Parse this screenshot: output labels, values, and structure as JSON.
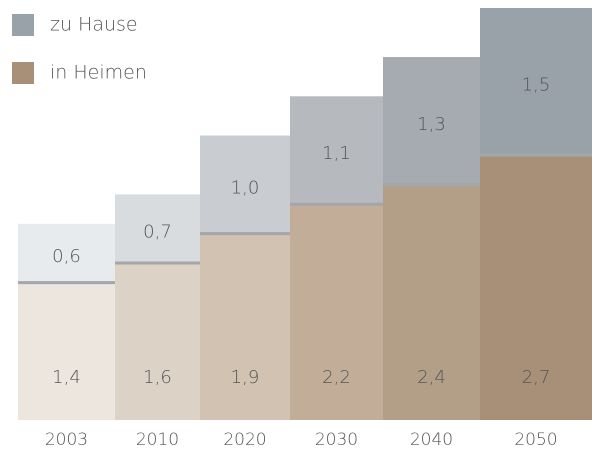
{
  "chart_data": {
    "type": "bar",
    "stacked": true,
    "categories": [
      "2003",
      "2010",
      "2020",
      "2030",
      "2040",
      "2050"
    ],
    "series": [
      {
        "name": "in Heimen",
        "color": "#a88f78",
        "colors": [
          "#ede6de",
          "#ddd2c6",
          "#d1c2b1",
          "#c2ad98",
          "#b39e88",
          "#a88f78"
        ],
        "values": [
          1.4,
          1.6,
          1.9,
          2.2,
          2.4,
          2.7
        ],
        "value_labels": [
          "1,4",
          "1,6",
          "1,9",
          "2,2",
          "2,4",
          "2,7"
        ]
      },
      {
        "name": "zu Hause",
        "color": "#99a1a9",
        "colors": [
          "#e7ebee",
          "#d9dcdf",
          "#c9ccd0",
          "#b6babe",
          "#a6abb1",
          "#99a1a9"
        ],
        "values": [
          0.6,
          0.7,
          1.0,
          1.1,
          1.3,
          1.5
        ],
        "value_labels": [
          "0,6",
          "0,7",
          "1,0",
          "1,1",
          "1,3",
          "1,5"
        ]
      }
    ],
    "legend": "top-left"
  }
}
